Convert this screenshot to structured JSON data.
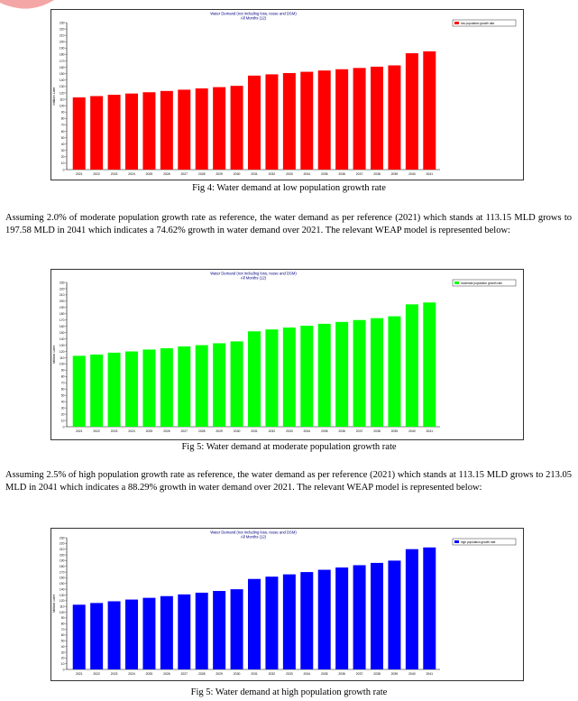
{
  "figures": [
    {
      "caption": "Fig 4: Water demand at low population growth rate",
      "chart_data": {
        "type": "bar",
        "title": "Water Demand (not including loss, reuse and DSM)",
        "subtitle": "All Months (12)",
        "ylabel": "Million Liter",
        "ylim": [
          0,
          230
        ],
        "yticks": [
          0,
          10,
          20,
          30,
          40,
          50,
          60,
          70,
          80,
          90,
          100,
          110,
          120,
          130,
          140,
          150,
          160,
          170,
          180,
          190,
          200,
          210,
          220,
          230
        ],
        "grid": false,
        "legend_position": "top-right",
        "categories": [
          "2021",
          "2022",
          "2023",
          "2024",
          "2025",
          "2026",
          "2027",
          "2028",
          "2029",
          "2030",
          "2031",
          "2032",
          "2033",
          "2034",
          "2035",
          "2036",
          "2037",
          "2038",
          "2039",
          "2040",
          "2041"
        ],
        "series": [
          {
            "name": "low population growth rate",
            "color": "#ff0000",
            "values": [
              113,
              115,
              117,
              119,
              121,
              123,
              125,
              127,
              129,
              131,
              147,
              149,
              151,
              153,
              155,
              157,
              159,
              161,
              163,
              182,
              185
            ]
          }
        ]
      }
    },
    {
      "caption": "Fig 5: Water demand at moderate population growth rate",
      "chart_data": {
        "type": "bar",
        "title": "Water Demand (not including loss, reuse and DSM)",
        "subtitle": "All Months (12)",
        "ylabel": "Million Liter",
        "ylim": [
          0,
          230
        ],
        "yticks": [
          0,
          10,
          20,
          30,
          40,
          50,
          60,
          70,
          80,
          90,
          100,
          110,
          120,
          130,
          140,
          150,
          160,
          170,
          180,
          190,
          200,
          210,
          220,
          230
        ],
        "grid": false,
        "legend_position": "top-right",
        "categories": [
          "2021",
          "2022",
          "2023",
          "2024",
          "2025",
          "2026",
          "2027",
          "2028",
          "2029",
          "2030",
          "2031",
          "2032",
          "2033",
          "2034",
          "2035",
          "2036",
          "2037",
          "2038",
          "2039",
          "2040",
          "2041"
        ],
        "series": [
          {
            "name": "moderate population growth rate",
            "color": "#00ff00",
            "values": [
              113,
              115,
              118,
              120,
              123,
              125,
              128,
              130,
              133,
              136,
              152,
              155,
              158,
              161,
              164,
              167,
              170,
              173,
              176,
              195,
              198
            ]
          }
        ]
      }
    },
    {
      "caption": "Fig 5: Water demand at high population growth rate",
      "chart_data": {
        "type": "bar",
        "title": "Water Demand (not including loss, reuse and DSM)",
        "subtitle": "All Months (12)",
        "ylabel": "Million Liter",
        "ylim": [
          0,
          230
        ],
        "yticks": [
          0,
          10,
          20,
          30,
          40,
          50,
          60,
          70,
          80,
          90,
          100,
          110,
          120,
          130,
          140,
          150,
          160,
          170,
          180,
          190,
          200,
          210,
          220,
          230
        ],
        "grid": false,
        "legend_position": "top-right",
        "categories": [
          "2021",
          "2022",
          "2023",
          "2024",
          "2025",
          "2026",
          "2027",
          "2028",
          "2029",
          "2030",
          "2031",
          "2032",
          "2033",
          "2034",
          "2035",
          "2036",
          "2037",
          "2038",
          "2039",
          "2040",
          "2041"
        ],
        "series": [
          {
            "name": "high population growth rate",
            "color": "#0000ff",
            "values": [
              113,
              116,
              119,
              122,
              125,
              128,
              131,
              134,
              137,
              140,
              158,
              162,
              166,
              170,
              174,
              178,
              182,
              186,
              190,
              210,
              213
            ]
          }
        ]
      }
    }
  ],
  "paragraphs": [
    "Assuming 2.0% of moderate population growth rate as reference, the water demand as per reference (2021) which stands at 113.15 MLD grows to 197.58 MLD in 2041 which indicates a 74.62% growth in water demand over 2021. The relevant WEAP model is represented below:",
    "Assuming 2.5% of high population growth rate as reference, the water demand as per reference (2021) which stands at 113.15 MLD grows to 213.05 MLD in 2041 which indicates a 88.29% growth in water demand over 2021. The relevant WEAP model is represented below:"
  ],
  "colors": {
    "frame": "#000000",
    "corner_mark": "#f4a6a6"
  }
}
